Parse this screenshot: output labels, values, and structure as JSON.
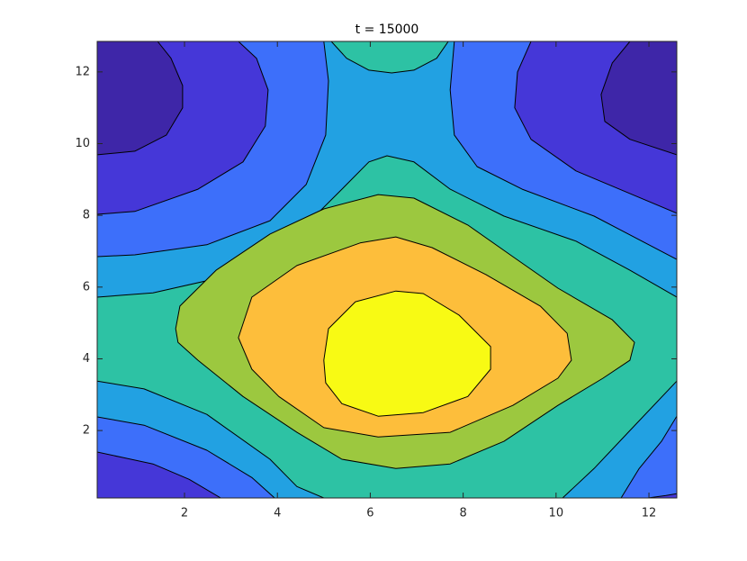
{
  "chart_data": {
    "type": "contourf",
    "title": "t = 15000",
    "xlim": [
      0.12,
      12.6
    ],
    "ylim": [
      0.12,
      12.85
    ],
    "xticks": [
      2,
      4,
      6,
      8,
      10,
      12
    ],
    "yticks": [
      2,
      4,
      6,
      8,
      10,
      12
    ],
    "base_color": "#3e26a8",
    "line_color": "#000000",
    "regions": [
      {
        "color": "#4537d8",
        "x": [
          1.42,
          11.59,
          11.21,
          10.97,
          11.05,
          11.59,
          12.6,
          12.6,
          0.12,
          0.12,
          0.93,
          1.61,
          1.96,
          1.96,
          1.71
        ],
        "y": [
          12.85,
          12.85,
          12.25,
          11.37,
          10.62,
          10.12,
          9.69,
          0.12,
          0.12,
          9.69,
          9.79,
          10.24,
          11.0,
          11.62,
          12.38
        ]
      },
      {
        "color": "#3d6ffa",
        "x": [
          3.16,
          9.46,
          9.17,
          9.11,
          9.46,
          10.43,
          11.59,
          12.6,
          12.6,
          12.37,
          11.98,
          2.78,
          2.1,
          1.32,
          0.12,
          0.12,
          0.93,
          2.29,
          3.26,
          3.74,
          3.8,
          3.55
        ],
        "y": [
          12.85,
          12.85,
          12.0,
          11.0,
          10.12,
          9.24,
          8.61,
          8.06,
          0.24,
          0.19,
          0.12,
          0.12,
          0.64,
          1.07,
          1.4,
          8.03,
          8.11,
          8.73,
          9.49,
          10.49,
          11.5,
          12.38
        ]
      },
      {
        "color": "#22a1e2",
        "x": [
          5.0,
          7.81,
          7.72,
          7.81,
          8.3,
          9.27,
          10.82,
          12.6,
          12.6,
          12.27,
          11.79,
          11.4,
          3.94,
          3.45,
          2.48,
          1.13,
          0.12,
          0.12,
          0.93,
          2.48,
          3.84,
          4.62,
          5.04,
          5.1
        ],
        "y": [
          12.85,
          12.85,
          11.5,
          10.24,
          9.36,
          8.73,
          7.98,
          6.77,
          2.4,
          1.7,
          0.94,
          0.12,
          0.12,
          0.69,
          1.45,
          2.15,
          2.38,
          6.85,
          6.9,
          7.18,
          7.85,
          8.86,
          10.24,
          11.75
        ]
      },
      {
        "color": "#2dc2a4",
        "x": [
          0.12,
          1.32,
          3.07,
          4.42,
          5.39,
          5.97,
          6.36,
          6.94,
          7.72,
          8.88,
          10.43,
          11.59,
          12.6,
          12.6,
          11.59,
          10.82,
          10.14,
          5.0,
          4.42,
          3.84,
          2.48,
          1.13,
          0.12
        ],
        "y": [
          5.72,
          5.84,
          6.35,
          7.48,
          8.73,
          9.49,
          9.66,
          9.49,
          8.73,
          7.98,
          7.28,
          6.47,
          5.72,
          3.38,
          2.0,
          0.94,
          0.12,
          0.12,
          0.44,
          1.2,
          2.45,
          3.16,
          3.38
        ]
      },
      {
        "color": "#2dc2a4",
        "x": [
          5.16,
          5.49,
          5.97,
          6.46,
          6.94,
          7.43,
          7.68
        ],
        "y": [
          12.85,
          12.38,
          12.05,
          11.97,
          12.05,
          12.38,
          12.85
        ]
      },
      {
        "color": "#9cc83f",
        "x": [
          1.81,
          1.9,
          2.68,
          3.84,
          5.0,
          6.17,
          6.94,
          8.1,
          9.07,
          10.04,
          11.21,
          11.69,
          11.59,
          11.01,
          10.04,
          8.88,
          7.72,
          6.55,
          5.39,
          4.42,
          3.26,
          2.29,
          1.86
        ],
        "y": [
          4.84,
          5.47,
          6.47,
          7.48,
          8.18,
          8.58,
          8.48,
          7.73,
          6.85,
          5.97,
          5.09,
          4.46,
          3.96,
          3.46,
          2.7,
          1.7,
          1.07,
          0.94,
          1.2,
          1.95,
          2.95,
          3.96,
          4.46
        ]
      },
      {
        "color": "#fdbe3b",
        "x": [
          3.16,
          3.45,
          4.42,
          5.78,
          6.55,
          7.33,
          8.49,
          9.66,
          10.24,
          10.33,
          10.04,
          9.07,
          7.72,
          6.17,
          5.0,
          4.03,
          3.45
        ],
        "y": [
          4.59,
          5.72,
          6.6,
          7.23,
          7.4,
          7.1,
          6.35,
          5.47,
          4.71,
          3.96,
          3.46,
          2.7,
          1.95,
          1.82,
          2.08,
          2.95,
          3.71
        ]
      },
      {
        "color": "#f8fa14",
        "x": [
          5.0,
          5.1,
          5.68,
          6.55,
          7.14,
          7.91,
          8.59,
          8.59,
          8.1,
          7.14,
          6.17,
          5.39,
          5.04
        ],
        "y": [
          3.96,
          4.84,
          5.59,
          5.89,
          5.82,
          5.22,
          4.34,
          3.71,
          2.95,
          2.5,
          2.4,
          2.75,
          3.33
        ]
      }
    ]
  }
}
